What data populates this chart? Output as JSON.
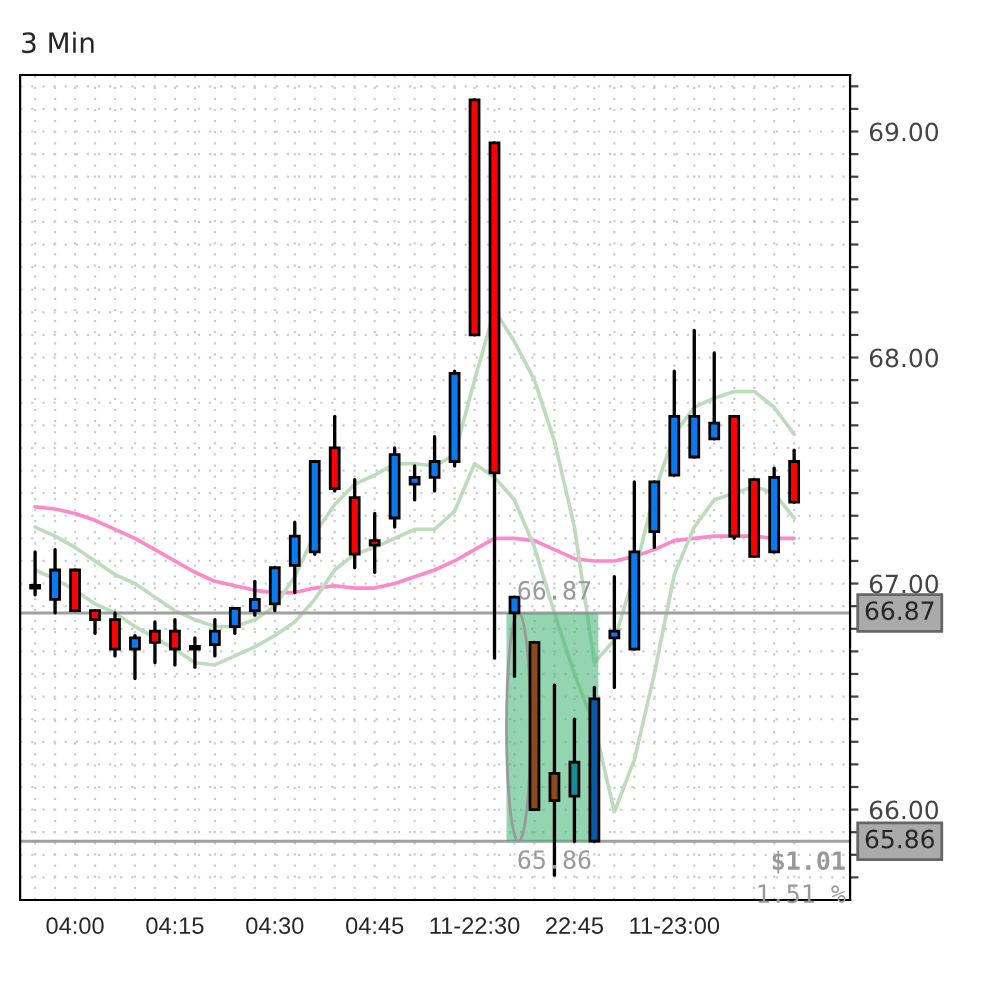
{
  "chart_data": {
    "type": "candlestick",
    "title": "3 Min",
    "categories": [
      null,
      null,
      "04:00",
      null,
      null,
      null,
      null,
      "04:15",
      null,
      null,
      null,
      null,
      "04:30",
      null,
      null,
      null,
      null,
      "04:45",
      null,
      null,
      null,
      null,
      "11-22:30",
      null,
      null,
      null,
      null,
      "22:45",
      null,
      null,
      null,
      null,
      "11-23:00",
      null,
      null,
      null,
      null,
      null,
      null
    ],
    "ohlc": [
      [
        66.99,
        67.14,
        66.95,
        66.98
      ],
      [
        66.93,
        67.15,
        66.87,
        67.06
      ],
      [
        67.06,
        67.06,
        66.88,
        66.88
      ],
      [
        66.88,
        66.88,
        66.78,
        66.84
      ],
      [
        66.84,
        66.87,
        66.68,
        66.71
      ],
      [
        66.71,
        66.77,
        66.58,
        66.76
      ],
      [
        66.79,
        66.83,
        66.65,
        66.74
      ],
      [
        66.79,
        66.84,
        66.64,
        66.71
      ],
      [
        66.71,
        66.76,
        66.63,
        66.72
      ],
      [
        66.73,
        66.84,
        66.68,
        66.79
      ],
      [
        66.81,
        66.89,
        66.78,
        66.89
      ],
      [
        66.88,
        67.01,
        66.86,
        66.93
      ],
      [
        66.91,
        67.07,
        66.88,
        67.07
      ],
      [
        67.08,
        67.27,
        66.96,
        67.21
      ],
      [
        67.14,
        67.54,
        67.13,
        67.54
      ],
      [
        67.6,
        67.74,
        67.41,
        67.42
      ],
      [
        67.38,
        67.46,
        67.07,
        67.13
      ],
      [
        67.19,
        67.31,
        67.05,
        67.17
      ],
      [
        67.29,
        67.6,
        67.25,
        67.57
      ],
      [
        67.44,
        67.52,
        67.37,
        67.47
      ],
      [
        67.47,
        67.65,
        67.41,
        67.54
      ],
      [
        67.54,
        67.94,
        67.52,
        67.93
      ],
      [
        69.14,
        69.14,
        68.1,
        68.1
      ],
      [
        68.95,
        68.95,
        66.67,
        67.49
      ],
      [
        66.87,
        66.94,
        66.59,
        66.94
      ],
      [
        66.74,
        66.74,
        66.0,
        66.0
      ],
      [
        66.16,
        66.55,
        65.71,
        66.04
      ],
      [
        66.06,
        66.4,
        65.86,
        66.21
      ],
      [
        65.86,
        66.54,
        65.86,
        66.49
      ],
      [
        66.76,
        67.03,
        66.54,
        66.79
      ],
      [
        66.71,
        67.45,
        66.71,
        67.14
      ],
      [
        67.23,
        67.45,
        67.16,
        67.45
      ],
      [
        67.48,
        67.94,
        67.48,
        67.74
      ],
      [
        67.56,
        68.12,
        67.56,
        67.74
      ],
      [
        67.64,
        68.02,
        67.64,
        67.71
      ],
      [
        67.74,
        67.74,
        67.2,
        67.21
      ],
      [
        67.46,
        67.46,
        67.12,
        67.12
      ],
      [
        67.14,
        67.51,
        67.14,
        67.47
      ],
      [
        67.54,
        67.59,
        67.36,
        67.36
      ]
    ],
    "colors": [
      "#ff0000",
      "#0a7af0",
      "#ff0000",
      "#ff0000",
      "#ff0000",
      "#0a7af0",
      "#ff0000",
      "#ff0000",
      "#0a7af0",
      "#0a7af0",
      "#0a7af0",
      "#0a7af0",
      "#0a7af0",
      "#0a7af0",
      "#0a7af0",
      "#ff0000",
      "#ff0000",
      "#ff0000",
      "#0a7af0",
      "#0a7af0",
      "#0a7af0",
      "#0a7af0",
      "#ff0000",
      "#ff0000",
      "#0a7af0",
      "#8a4a1e",
      "#8a4a1e",
      "#1a8a9a",
      "#0a5aa8",
      "#0a7af0",
      "#0a7af0",
      "#0a7af0",
      "#0a7af0",
      "#0a7af0",
      "#0a7af0",
      "#ff0000",
      "#ff0000",
      "#0a7af0",
      "#ff0000"
    ],
    "series": [
      {
        "type": "line",
        "color": "#ff88c8",
        "values": [
          67.34,
          67.33,
          67.31,
          67.28,
          67.24,
          67.2,
          67.15,
          67.1,
          67.05,
          67.01,
          66.99,
          66.97,
          66.96,
          66.96,
          66.98,
          66.99,
          66.98,
          66.98,
          67.0,
          67.03,
          67.06,
          67.1,
          67.15,
          67.2,
          67.2,
          67.19,
          67.15,
          67.11,
          67.1,
          67.1,
          67.12,
          67.15,
          67.19,
          67.2,
          67.21,
          67.21,
          67.21,
          67.2,
          67.2
        ]
      },
      {
        "type": "line",
        "color": "#bcdcbc",
        "values": [
          67.25,
          67.21,
          67.16,
          67.1,
          67.04,
          67.0,
          66.94,
          66.88,
          66.84,
          66.81,
          66.81,
          66.84,
          66.9,
          67.03,
          67.22,
          67.35,
          67.44,
          67.48,
          67.53,
          67.53,
          67.52,
          67.57,
          67.9,
          68.21,
          68.07,
          67.9,
          67.63,
          67.25,
          66.65,
          66.75,
          67.04,
          67.4,
          67.66,
          67.78,
          67.82,
          67.85,
          67.85,
          67.78,
          67.66
        ]
      },
      {
        "type": "line",
        "color": "#bcdcbc",
        "values": [
          67.06,
          67.02,
          66.97,
          66.91,
          66.87,
          66.81,
          66.76,
          66.71,
          66.65,
          66.64,
          66.68,
          66.72,
          66.77,
          66.83,
          66.93,
          67.06,
          67.13,
          67.16,
          67.2,
          67.24,
          67.24,
          67.32,
          67.53,
          67.47,
          67.37,
          67.16,
          66.87,
          66.6,
          66.37,
          65.99,
          66.22,
          66.6,
          67.04,
          67.25,
          67.37,
          67.4,
          67.43,
          67.4,
          67.29
        ]
      }
    ],
    "ylim": [
      65.6,
      69.25
    ],
    "yticks": [
      {
        "value": 65.7,
        "label": null
      },
      {
        "value": 65.8,
        "label": null
      },
      {
        "value": 65.9,
        "label": null
      },
      {
        "value": 66.0,
        "label": "66.00"
      },
      {
        "value": 66.1,
        "label": null
      },
      {
        "value": 66.2,
        "label": null
      },
      {
        "value": 66.3,
        "label": null
      },
      {
        "value": 66.4,
        "label": null
      },
      {
        "value": 66.5,
        "label": null
      },
      {
        "value": 66.6,
        "label": null
      },
      {
        "value": 66.7,
        "label": null
      },
      {
        "value": 66.8,
        "label": null
      },
      {
        "value": 66.9,
        "label": null
      },
      {
        "value": 67.0,
        "label": "67.00"
      },
      {
        "value": 67.1,
        "label": null
      },
      {
        "value": 67.2,
        "label": null
      },
      {
        "value": 67.3,
        "label": null
      },
      {
        "value": 67.4,
        "label": null
      },
      {
        "value": 67.5,
        "label": null
      },
      {
        "value": 67.6,
        "label": null
      },
      {
        "value": 67.7,
        "label": null
      },
      {
        "value": 67.8,
        "label": null
      },
      {
        "value": 67.9,
        "label": null
      },
      {
        "value": 68.0,
        "label": "68.00"
      },
      {
        "value": 68.1,
        "label": null
      },
      {
        "value": 68.2,
        "label": null
      },
      {
        "value": 68.3,
        "label": null
      },
      {
        "value": 68.4,
        "label": null
      },
      {
        "value": 68.5,
        "label": null
      },
      {
        "value": 68.6,
        "label": null
      },
      {
        "value": 68.7,
        "label": null
      },
      {
        "value": 68.8,
        "label": null
      },
      {
        "value": 68.9,
        "label": null
      },
      {
        "value": 69.0,
        "label": "69.00"
      },
      {
        "value": 69.1,
        "label": null
      },
      {
        "value": 69.2,
        "label": null
      }
    ],
    "ref_lines": [
      {
        "axis": "y",
        "value": 66.87,
        "label": "66.87",
        "color": "#a0a0a0"
      },
      {
        "axis": "y",
        "value": 65.86,
        "label": "65.86",
        "color": "#a0a0a0"
      }
    ],
    "annotations": [
      {
        "text": "66.87",
        "y": 66.87
      },
      {
        "text": "65.86",
        "y": 65.86
      },
      "$1.01",
      "1.51 %"
    ],
    "grid": true
  }
}
